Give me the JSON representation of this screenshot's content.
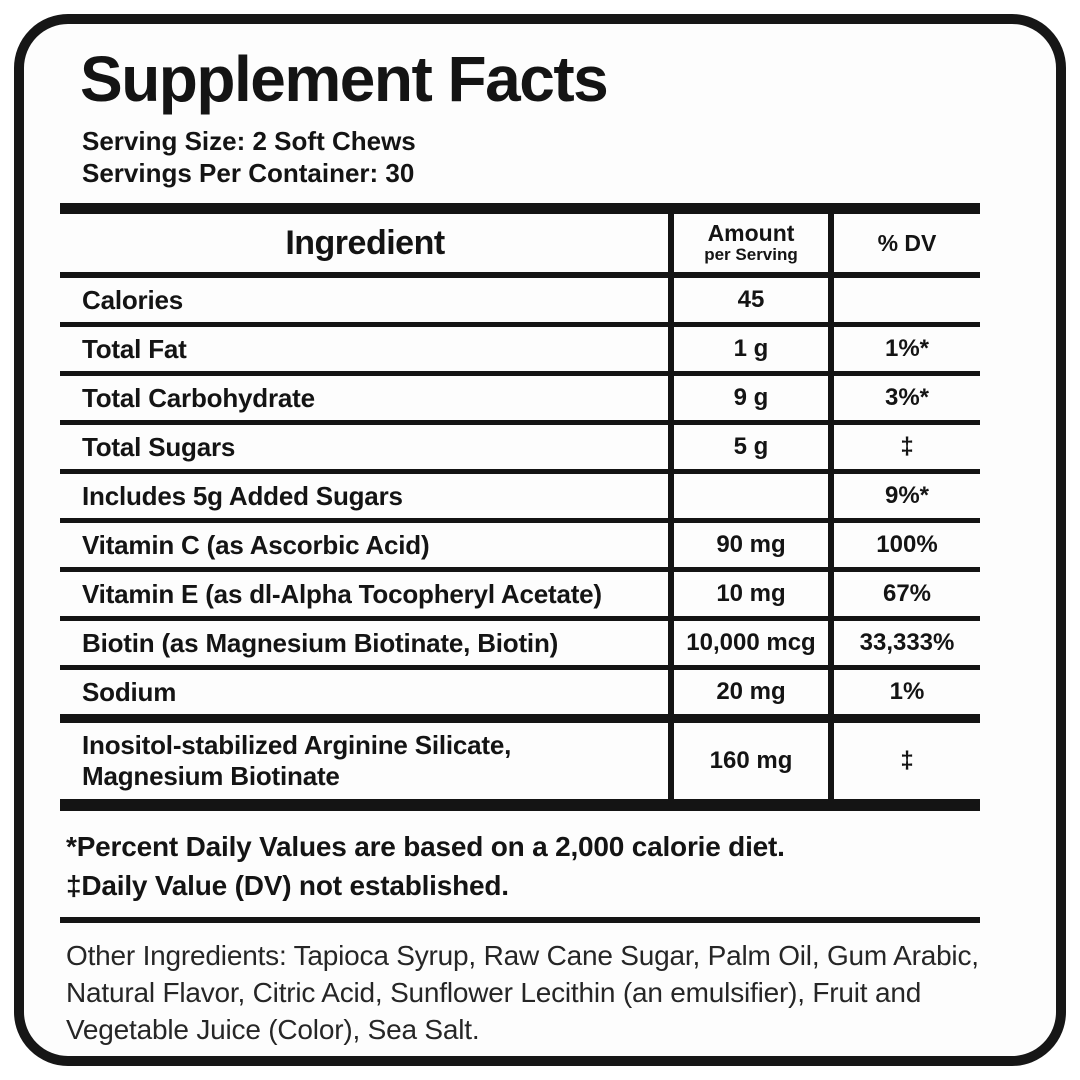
{
  "label": {
    "title": "Supplement Facts",
    "serving_size": "Serving Size: 2 Soft Chews",
    "servings_per_container": "Servings Per Container: 30"
  },
  "table": {
    "headers": {
      "ingredient": "Ingredient",
      "amount_top": "Amount",
      "amount_sub": "per Serving",
      "dv": "% DV"
    },
    "rows": [
      {
        "name": "Calories",
        "amount": "45",
        "dv": ""
      },
      {
        "name": "Total Fat",
        "amount": "1 g",
        "dv": "1%*"
      },
      {
        "name": "Total Carbohydrate",
        "amount": "9 g",
        "dv": "3%*"
      },
      {
        "name": "Total Sugars",
        "amount": "5 g",
        "dv": "‡"
      },
      {
        "name": "Includes 5g Added Sugars",
        "amount": "",
        "dv": "9%*"
      },
      {
        "name": "Vitamin C (as Ascorbic Acid)",
        "amount": "90 mg",
        "dv": "100%"
      },
      {
        "name": "Vitamin E (as dl-Alpha Tocopheryl Acetate)",
        "amount": "10 mg",
        "dv": "67%"
      },
      {
        "name": "Biotin (as Magnesium Biotinate, Biotin)",
        "amount": "10,000 mcg",
        "dv": "33,333%"
      },
      {
        "name": "Sodium",
        "amount": "20 mg",
        "dv": "1%"
      },
      {
        "name": "Inositol-stabilized Arginine Silicate, Magnesium Biotinate",
        "amount": "160 mg",
        "dv": "‡"
      }
    ]
  },
  "footnotes": {
    "line1": "*Percent Daily Values are based on a 2,000 calorie diet.",
    "line2": "‡Daily Value (DV) not established."
  },
  "other_ingredients": "Other Ingredients: Tapioca Syrup, Raw Cane Sugar, Palm Oil, Gum Arabic, Natural Flavor, Citric Acid, Sunflower Lecithin (an emulsifier), Fruit and Vegetable Juice (Color), Sea Salt.",
  "colors": {
    "ink": "#141414",
    "border": "#161616",
    "background": "#fdfdfd",
    "other_text": "#262626"
  }
}
